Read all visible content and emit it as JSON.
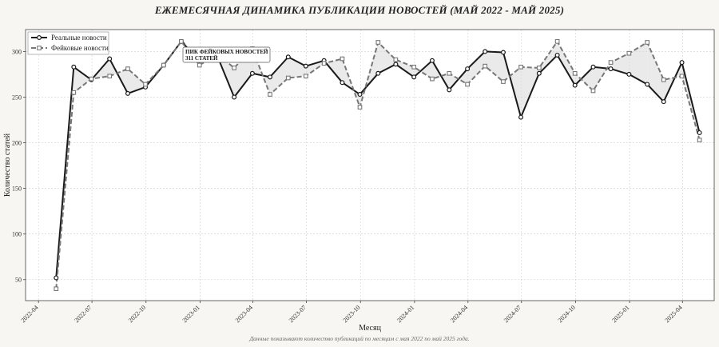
{
  "title": "ЕЖЕМЕСЯЧНАЯ ДИНАМИКА ПУБЛИКАЦИИ НОВОСТЕЙ (МАЙ 2022 - МАЙ 2025)",
  "footnote": "Данные показывают количество публикаций по месяцам с мая 2022 по май 2025 года.",
  "colors": {
    "real": "#1a1a1a",
    "fake": "#777777",
    "fill": "#d8d8d8",
    "plot_bg": "#ffffff",
    "page_bg": "#f7f6f2"
  },
  "chart_data": {
    "type": "line",
    "title": "ЕЖЕМЕСЯЧНАЯ ДИНАМИКА ПУБЛИКАЦИИ НОВОСТЕЙ (МАЙ 2022 - МАЙ 2025)",
    "xlabel": "Месяц",
    "ylabel": "Количество статей",
    "ylim": [
      27,
      324
    ],
    "yticks": [
      50,
      100,
      150,
      200,
      250,
      300
    ],
    "xlim": [
      "2022-03-10",
      "2025-05-25"
    ],
    "xticks": [
      "2022-04",
      "2022-07",
      "2022-10",
      "2023-01",
      "2023-04",
      "2023-07",
      "2023-10",
      "2024-01",
      "2024-04",
      "2024-07",
      "2024-10",
      "2025-01",
      "2025-04"
    ],
    "grid": true,
    "legend_position": "top-left",
    "x": [
      "2022-05-01",
      "2022-05-31",
      "2022-06-30",
      "2022-07-31",
      "2022-08-31",
      "2022-09-30",
      "2022-10-31",
      "2022-11-30",
      "2022-12-31",
      "2023-01-31",
      "2023-02-28",
      "2023-03-31",
      "2023-04-30",
      "2023-05-31",
      "2023-06-30",
      "2023-07-31",
      "2023-08-31",
      "2023-09-30",
      "2023-10-31",
      "2023-11-30",
      "2023-12-31",
      "2024-01-31",
      "2024-02-29",
      "2024-03-31",
      "2024-04-30",
      "2024-05-31",
      "2024-06-30",
      "2024-07-31",
      "2024-08-31",
      "2024-09-30",
      "2024-10-31",
      "2024-11-30",
      "2024-12-31",
      "2025-01-31",
      "2025-02-28",
      "2025-03-31",
      "2025-04-30"
    ],
    "series": [
      {
        "name": "Реальные новости",
        "marker": "circle",
        "values": [
          52,
          283,
          269,
          292,
          254,
          261,
          285,
          311,
          290,
          294,
          250,
          276,
          272,
          294,
          284,
          290,
          266,
          253,
          276,
          286,
          272,
          290,
          258,
          281,
          300,
          299,
          228,
          276,
          296,
          263,
          283,
          281,
          275,
          264,
          245,
          288,
          211
        ]
      },
      {
        "name": "Фейковые новости",
        "marker": "square",
        "values": [
          40,
          255,
          270,
          273,
          281,
          264,
          285,
          311,
          285,
          297,
          282,
          303,
          253,
          271,
          273,
          287,
          292,
          239,
          310,
          291,
          283,
          270,
          276,
          264,
          284,
          267,
          283,
          282,
          311,
          276,
          257,
          288,
          298,
          310,
          269,
          273,
          203
        ]
      }
    ],
    "annotation": {
      "text_line1": "ПИК ФЕЙКОВЫХ НОВОСТЕЙ",
      "text_line2": "311 СТАТЕЙ",
      "series": "Фейковые новости",
      "x": "2022-11-30",
      "y": 311
    }
  }
}
